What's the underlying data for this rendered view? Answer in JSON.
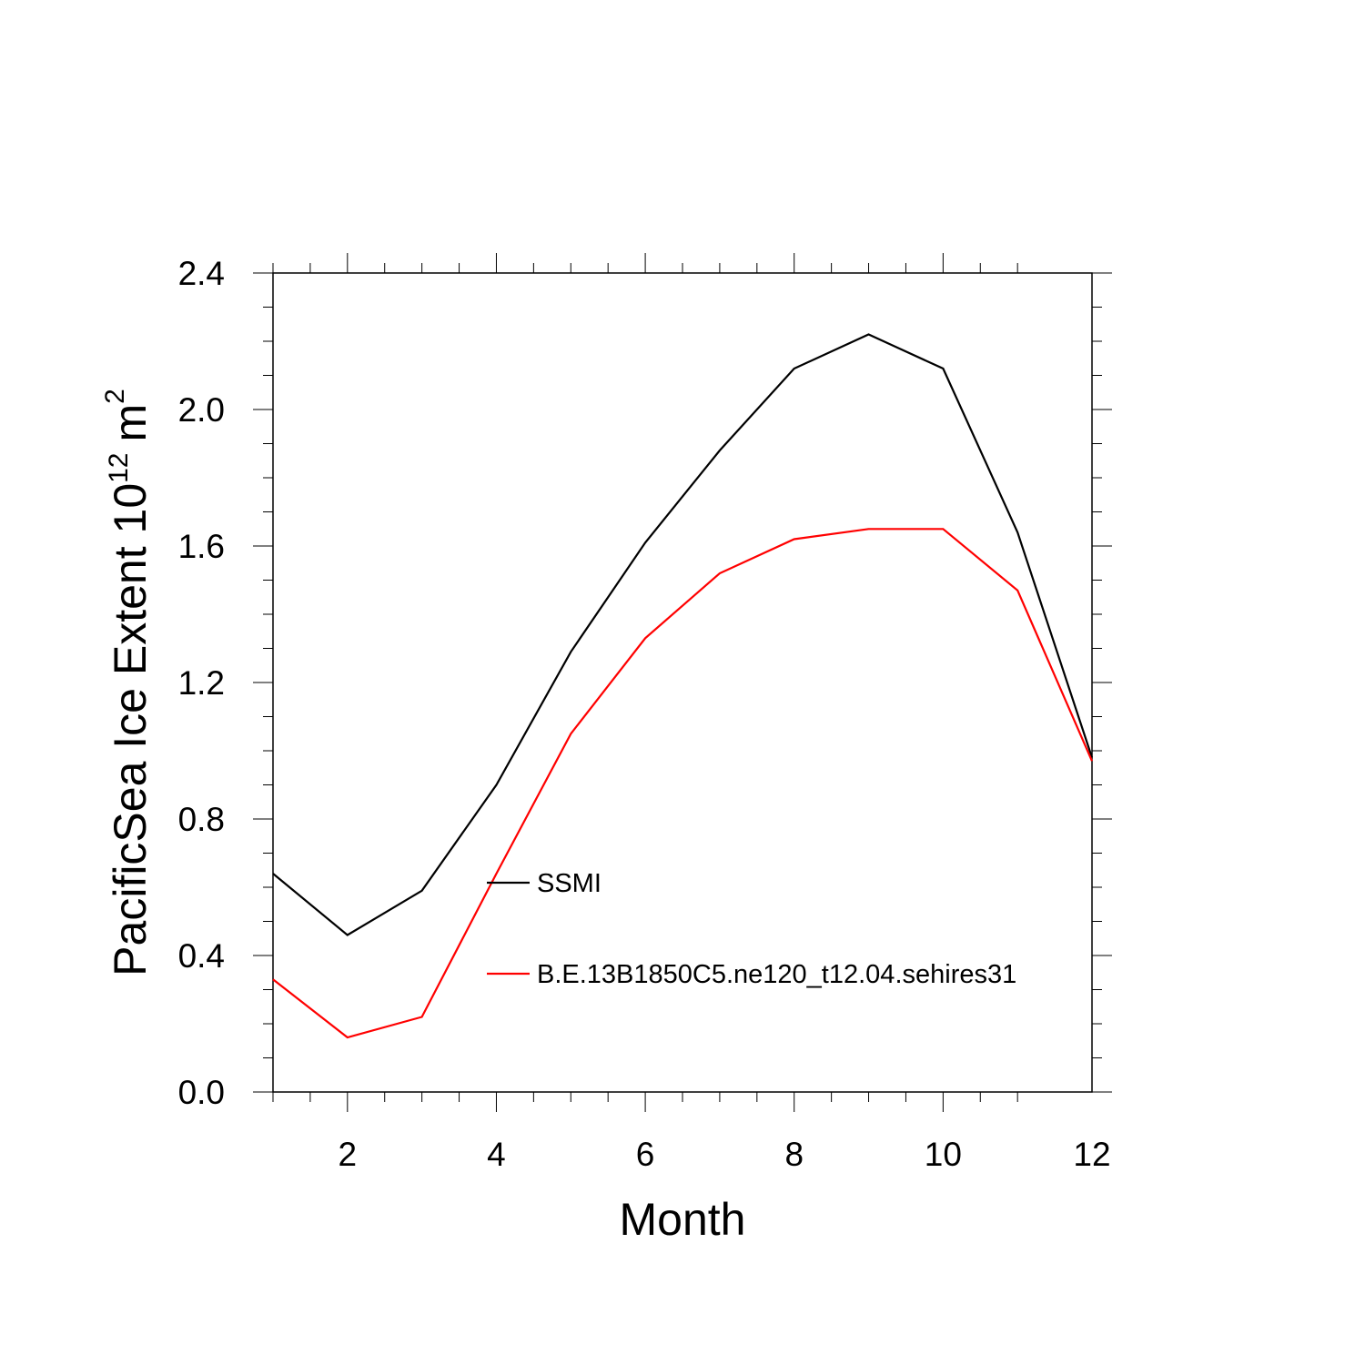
{
  "chart_data": {
    "type": "line",
    "title": "",
    "xlabel": "Month",
    "ylabel": "PacificSea Ice Extent 10",
    "ylabel_superscript": "12",
    "ylabel_unit": "m",
    "ylabel_unit_superscript": "2",
    "xlim": [
      1,
      12
    ],
    "ylim": [
      0.0,
      2.4
    ],
    "x_ticks": [
      2,
      4,
      6,
      8,
      10,
      12
    ],
    "x_tick_labels": [
      "2",
      "4",
      "6",
      "8",
      "10",
      "12"
    ],
    "y_ticks": [
      0.0,
      0.4,
      0.8,
      1.2,
      1.6,
      2.0,
      2.4
    ],
    "y_tick_labels": [
      "0.0",
      "0.4",
      "0.8",
      "1.2",
      "1.6",
      "2.0",
      "2.4"
    ],
    "grid": false,
    "legend_position": "inside-lower-center",
    "x": [
      1,
      2,
      3,
      4,
      5,
      6,
      7,
      8,
      9,
      10,
      11,
      12
    ],
    "series": [
      {
        "name": "SSMI",
        "color": "#000000",
        "values": [
          0.64,
          0.46,
          0.59,
          0.9,
          1.29,
          1.61,
          1.88,
          2.12,
          2.22,
          2.12,
          1.64,
          0.98
        ]
      },
      {
        "name": "B.E.13B1850C5.ne120_t12.04.sehires31",
        "color": "#ff0000",
        "values": [
          0.33,
          0.16,
          0.22,
          0.64,
          1.05,
          1.33,
          1.52,
          1.62,
          1.65,
          1.65,
          1.47,
          0.97
        ]
      }
    ]
  }
}
